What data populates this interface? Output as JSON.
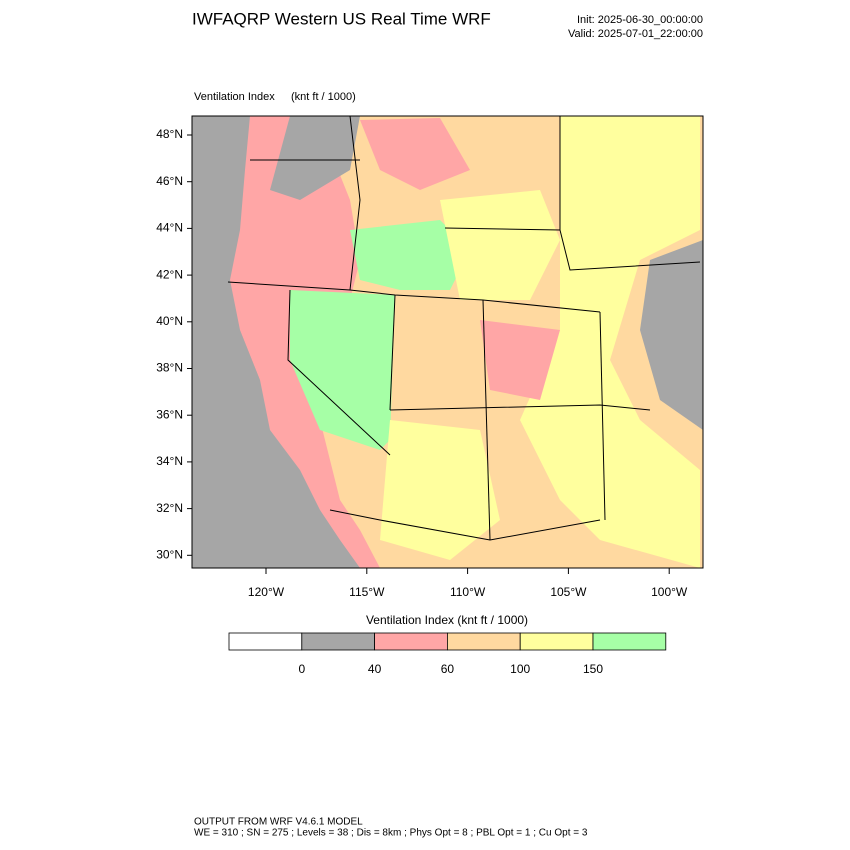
{
  "header": {
    "title": "IWFAQRP Western US Real Time WRF",
    "init": "Init: 2025-06-30_00:00:00",
    "valid": "Valid: 2025-07-01_22:00:00"
  },
  "map": {
    "variable": "Ventilation Index",
    "units": "(knt ft / 1000)",
    "lat_labels": [
      "48°N",
      "46°N",
      "44°N",
      "42°N",
      "40°N",
      "38°N",
      "36°N",
      "34°N",
      "32°N",
      "30°N"
    ],
    "lon_labels": [
      "120°W",
      "115°W",
      "110°W",
      "105°W",
      "100°W"
    ]
  },
  "colorbar": {
    "title": "Ventilation Index   (knt ft / 1000)",
    "colors": [
      "#ffffff",
      "#a6a6a6",
      "#ffa6a6",
      "#ffd9a0",
      "#ffff9e",
      "#a6ffa6"
    ],
    "labels": [
      0,
      40,
      60,
      100,
      150
    ]
  },
  "footer": {
    "line1": "OUTPUT FROM WRF V4.6.1 MODEL",
    "line2": "WE = 310 ; SN = 275 ; Levels = 38 ; Dis = 8km ; Phys Opt = 8 ; PBL Opt = 1 ; Cu Opt = 3"
  }
}
